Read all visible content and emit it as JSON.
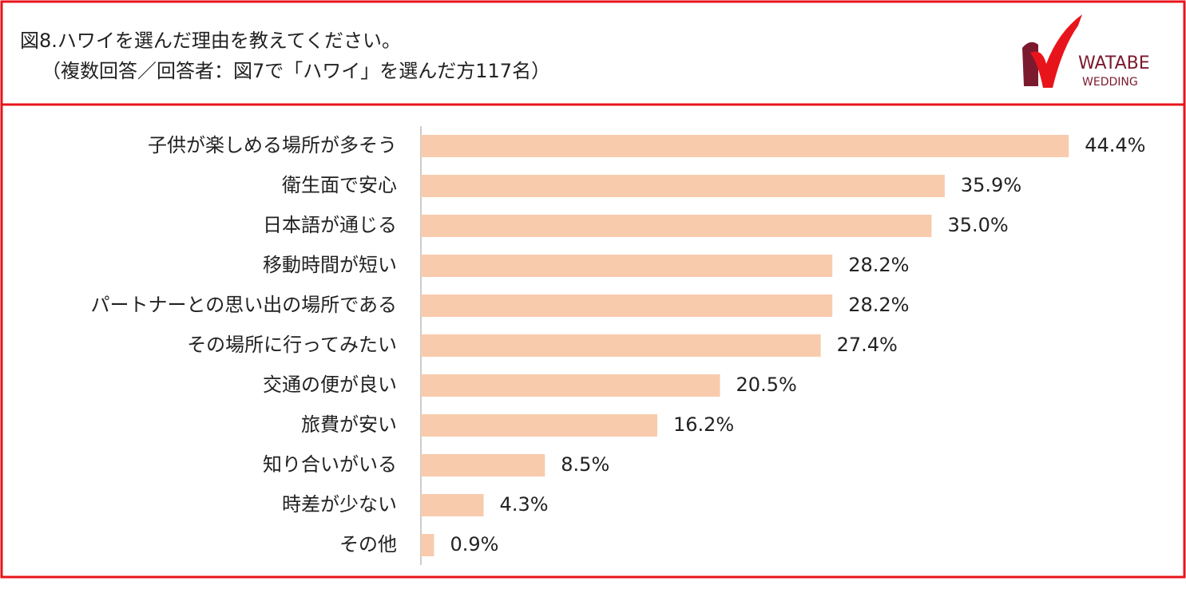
{
  "chart_data": {
    "type": "bar",
    "orientation": "horizontal",
    "title": "図8.ハワイを選んだ理由を教えてください。",
    "subtitle": "（複数回答／回答者：図7で「ハワイ」を選んだ方117名）",
    "categories": [
      "子供が楽しめる場所が多そう",
      "衛生面で安心",
      "日本語が通じる",
      "移動時間が短い",
      "パートナーとの思い出の場所である",
      "その場所に行ってみたい",
      "交通の便が良い",
      "旅費が安い",
      "知り合いがいる",
      "時差が少ない",
      "その他"
    ],
    "values": [
      44.4,
      35.9,
      35.0,
      28.2,
      28.2,
      27.4,
      20.5,
      16.2,
      8.5,
      4.3,
      0.9
    ],
    "value_labels": [
      "44.4%",
      "35.9%",
      "35.0%",
      "28.2%",
      "28.2%",
      "27.4%",
      "20.5%",
      "16.2%",
      "8.5%",
      "4.3%",
      "0.9%"
    ],
    "color": "#f8cbad"
  },
  "logo": {
    "line1": "WATABE",
    "line2": "WEDDING"
  }
}
